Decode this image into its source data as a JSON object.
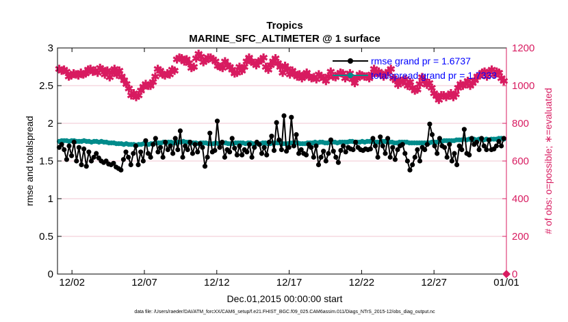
{
  "chart_data": {
    "type": "line",
    "title": "Tropics",
    "subtitle": "MARINE_SFC_ALTIMETER @ 1 surface",
    "xlabel": "Dec.01,2015 00:00:00 start",
    "ylabel_left": "rmse and totalspread",
    "ylabel_right": "# of obs: o=possible; ∗=evaluated",
    "footnote": "data file: /Users/raeder/DAI/ATM_forcXX/CAM6_setup/f.e21.FHIST_BGC.f09_025.CAM6assim.011/Diags_NTrS_2015-12/obs_diag_output.nc",
    "xlim": [
      0.0,
      31.0
    ],
    "ylim_left": [
      0,
      3
    ],
    "ylim_right": [
      0,
      1200
    ],
    "x_ticks": [
      1,
      6,
      11,
      16,
      21,
      26,
      31
    ],
    "x_tick_labels": [
      "12/02",
      "12/07",
      "12/12",
      "12/17",
      "12/22",
      "12/27",
      "01/01"
    ],
    "y_left_ticks": [
      0,
      0.5,
      1,
      1.5,
      2,
      2.5,
      3
    ],
    "y_left_tick_labels": [
      "0",
      "0.5",
      "1",
      "1.5",
      "2",
      "2.5",
      "3"
    ],
    "y_right_ticks": [
      0,
      200,
      400,
      600,
      800,
      1000,
      1200
    ],
    "y_right_tick_labels": [
      "0",
      "200",
      "400",
      "600",
      "800",
      "1000",
      "1200"
    ],
    "colors": {
      "rmse": "#000000",
      "spread": "#008b8b",
      "obs": "#d81b60",
      "grid": "#f2c6d0",
      "axis": "#000000"
    },
    "series": [
      {
        "name": "rmse",
        "legend": "rmse grand pr = 1.6737",
        "axis": "left",
        "values": [
          1.68,
          1.72,
          1.65,
          1.52,
          1.7,
          1.57,
          1.75,
          1.5,
          1.68,
          1.45,
          1.66,
          1.43,
          1.62,
          1.5,
          1.55,
          1.6,
          1.54,
          1.5,
          1.48,
          1.5,
          1.46,
          1.45,
          1.47,
          1.42,
          1.4,
          1.38,
          1.52,
          1.62,
          1.55,
          1.45,
          1.6,
          1.7,
          1.45,
          1.62,
          1.5,
          1.77,
          1.6,
          1.55,
          1.72,
          1.8,
          1.62,
          1.68,
          1.55,
          1.75,
          1.65,
          1.7,
          1.6,
          1.8,
          1.65,
          1.9,
          1.55,
          1.7,
          1.65,
          1.75,
          1.6,
          1.72,
          1.62,
          1.73,
          1.68,
          1.43,
          1.55,
          1.87,
          1.62,
          1.64,
          2.03,
          1.68,
          1.75,
          1.55,
          1.65,
          1.62,
          1.8,
          1.67,
          1.58,
          1.7,
          1.58,
          1.65,
          1.62,
          1.72,
          1.55,
          1.68,
          1.75,
          1.72,
          1.6,
          1.68,
          1.58,
          1.75,
          1.83,
          1.64,
          2.01,
          1.78,
          1.65,
          2.1,
          1.63,
          1.68,
          2.08,
          1.7,
          1.85,
          1.6,
          1.65,
          1.6,
          1.58,
          1.72,
          1.68,
          1.55,
          1.7,
          1.45,
          1.55,
          1.63,
          1.5,
          1.6,
          1.78,
          1.63,
          1.55,
          1.48,
          1.64,
          1.7,
          1.62,
          1.68,
          1.66,
          1.65,
          1.75,
          1.68,
          1.65,
          1.64,
          1.66,
          1.65,
          1.66,
          1.8,
          1.7,
          1.55,
          1.82,
          1.7,
          1.6,
          1.8,
          1.55,
          1.68,
          1.52,
          1.65,
          1.7,
          1.72,
          1.6,
          1.5,
          1.38,
          1.45,
          1.55,
          1.65,
          1.5,
          1.68,
          1.65,
          1.72,
          1.99,
          1.85,
          1.7,
          1.6,
          1.8,
          1.7,
          1.68,
          1.55,
          1.72,
          1.5,
          1.6,
          1.45,
          1.7,
          1.65,
          1.92,
          1.6,
          1.58,
          1.8,
          1.72,
          1.75,
          1.65,
          1.8,
          1.7,
          1.65,
          1.78,
          1.65,
          1.66,
          1.7,
          1.76,
          1.7,
          1.8
        ]
      },
      {
        "name": "totalspread",
        "legend": "totalspread grand pr = 1.7333",
        "axis": "left",
        "values": [
          1.76,
          1.77,
          1.77,
          1.77,
          1.76,
          1.77,
          1.77,
          1.76,
          1.76,
          1.76,
          1.77,
          1.76,
          1.76,
          1.75,
          1.76,
          1.76,
          1.75,
          1.76,
          1.75,
          1.75,
          1.74,
          1.74,
          1.74,
          1.73,
          1.73,
          1.73,
          1.72,
          1.73,
          1.72,
          1.72,
          1.72,
          1.71,
          1.72,
          1.72,
          1.73,
          1.73,
          1.72,
          1.73,
          1.73,
          1.74,
          1.74,
          1.74,
          1.75,
          1.74,
          1.75,
          1.75,
          1.74,
          1.74,
          1.75,
          1.75,
          1.76,
          1.75,
          1.75,
          1.74,
          1.74,
          1.74,
          1.73,
          1.74,
          1.74,
          1.74,
          1.73,
          1.73,
          1.73,
          1.74,
          1.73,
          1.74,
          1.74,
          1.74,
          1.73,
          1.73,
          1.73,
          1.74,
          1.74,
          1.74,
          1.74,
          1.73,
          1.74,
          1.74,
          1.73,
          1.73,
          1.73,
          1.73,
          1.74,
          1.74,
          1.73,
          1.73,
          1.74,
          1.74,
          1.74,
          1.74,
          1.73,
          1.73,
          1.73,
          1.74,
          1.74,
          1.74,
          1.74,
          1.73,
          1.73,
          1.73,
          1.74,
          1.74,
          1.74,
          1.75,
          1.74,
          1.75,
          1.75,
          1.74,
          1.74,
          1.75,
          1.75,
          1.75,
          1.74,
          1.75,
          1.75,
          1.75,
          1.75,
          1.76,
          1.76,
          1.75,
          1.75,
          1.75,
          1.76,
          1.75,
          1.76,
          1.76,
          1.76,
          1.75,
          1.75,
          1.75,
          1.76,
          1.76,
          1.75,
          1.75,
          1.75,
          1.74,
          1.74,
          1.75,
          1.75,
          1.75,
          1.75,
          1.74,
          1.74,
          1.74,
          1.74,
          1.74,
          1.74,
          1.74,
          1.74,
          1.74,
          1.75,
          1.75,
          1.75,
          1.76,
          1.76,
          1.77,
          1.77,
          1.77,
          1.77,
          1.77,
          1.78,
          1.78,
          1.78,
          1.79,
          1.78,
          1.79,
          1.78,
          1.79,
          1.78,
          1.79,
          1.79,
          1.78,
          1.79,
          1.78,
          1.79,
          1.79,
          1.79,
          1.8,
          1.8,
          1.79
        ]
      },
      {
        "name": "obs_evaluated",
        "axis": "right",
        "values": [
          1090,
          1080,
          1085,
          1075,
          1050,
          1055,
          1065,
          1060,
          1055,
          1070,
          1060,
          1065,
          1085,
          1090,
          1075,
          1080,
          1070,
          1095,
          1085,
          1060,
          1080,
          1045,
          1070,
          1090,
          1060,
          1080,
          1050,
          1030,
          1010,
          985,
          950,
          960,
          940,
          950,
          975,
          995,
          1010,
          1000,
          1000,
          1020,
          1050,
          1090,
          1080,
          1060,
          1055,
          1065,
          1060,
          1085,
          1080,
          1140,
          1150,
          1145,
          1130,
          1140,
          1120,
          1095,
          1100,
          1145,
          1170,
          1155,
          1125,
          1135,
          1150,
          1150,
          1140,
          1130,
          1105,
          1100,
          1095,
          1130,
          1110,
          1100,
          1085,
          1065,
          1070,
          1100,
          1080,
          1100,
          1130,
          1150,
          1130,
          1120,
          1110,
          1130,
          1135,
          1150,
          1100,
          1085,
          1110,
          1130,
          1145,
          1120,
          1100,
          1070,
          1105,
          1090,
          1060,
          1080,
          1065,
          1050,
          1060,
          1040,
          1055,
          1070,
          1050,
          1040,
          1045,
          1035,
          1060,
          1050,
          1040,
          1025,
          1050,
          1075,
          1050,
          1045,
          1060,
          1070,
          1065,
          1040,
          1050,
          1065,
          1035,
          1015,
          1040,
          1060,
          1055,
          1050,
          1050,
          1040,
          1060,
          1090,
          1070,
          1075,
          1060,
          1050,
          1065,
          1075,
          1090,
          1040,
          1030,
          1005,
          1025,
          1020,
          1035,
          1000,
          1020,
          990,
          975,
          980,
          1010,
          1045,
          1025,
          1005,
          1015,
          990,
          960,
          945,
          925,
          950,
          950,
          940,
          950,
          960,
          940,
          955,
          990,
          1010,
          1000,
          1010,
          1025,
          1000,
          1015,
          1030,
          1050,
          1055,
          1070,
          1075,
          1050,
          1075,
          1085,
          1060,
          1075,
          1070,
          1040,
          1025
        ]
      }
    ]
  }
}
